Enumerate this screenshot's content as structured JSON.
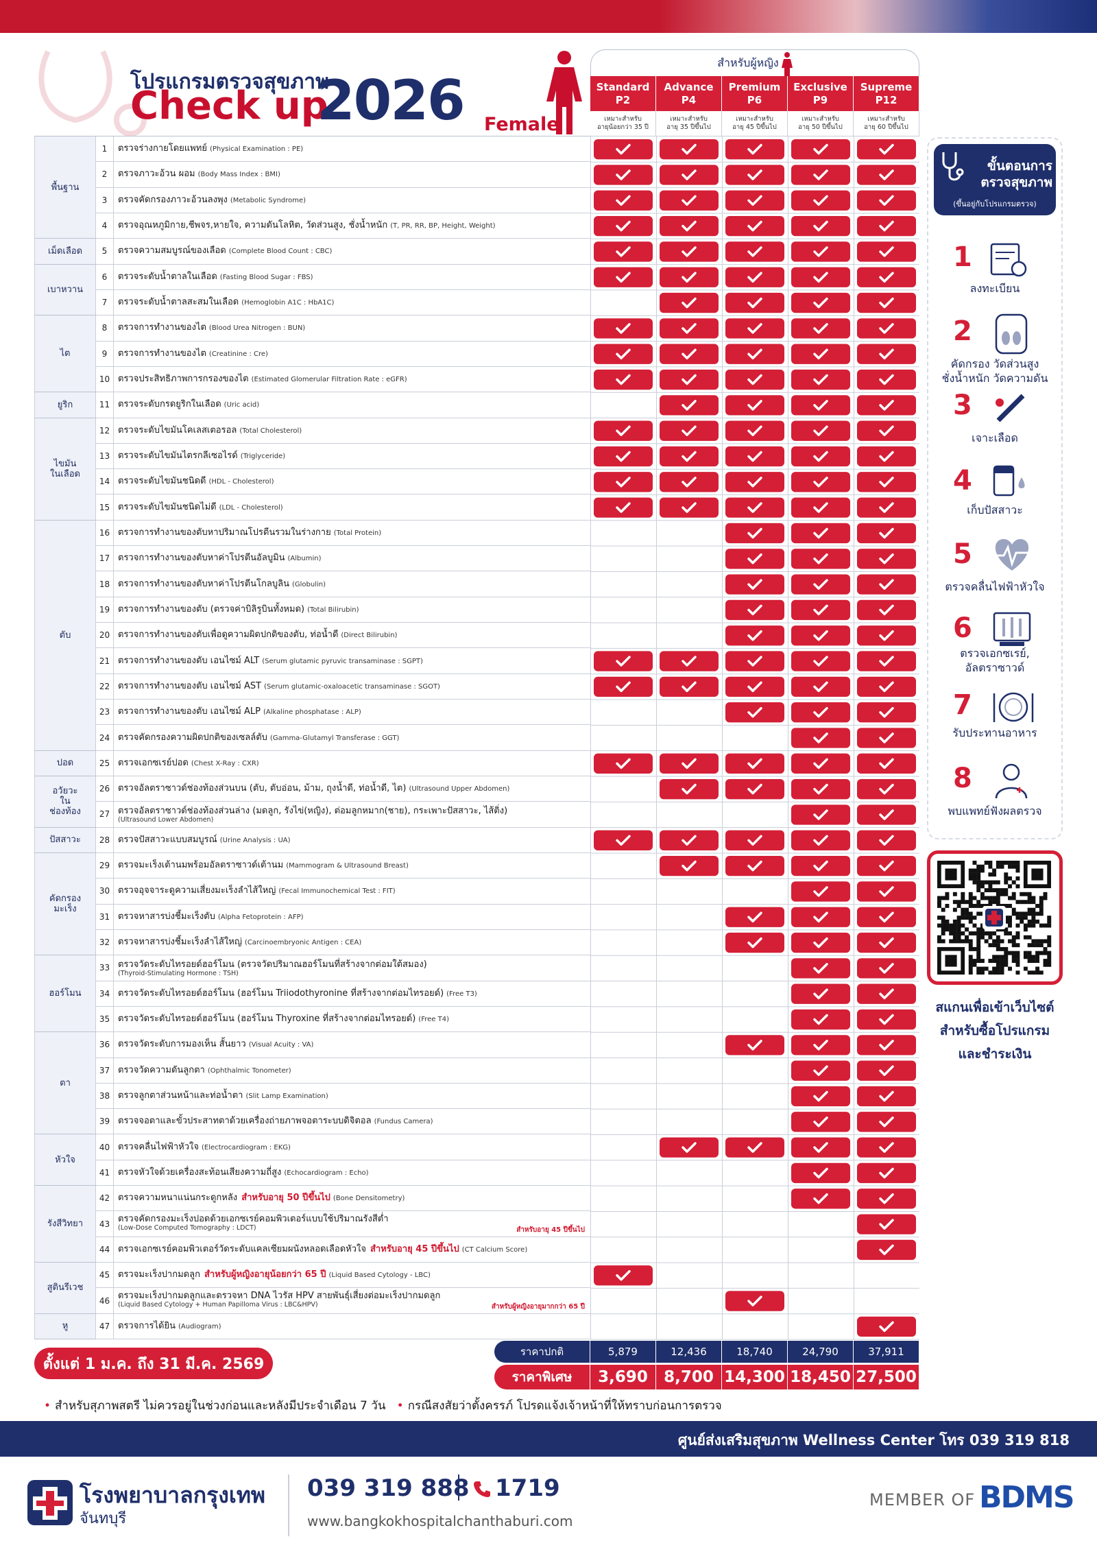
{
  "header": {
    "title_th": "โปรแกรมตรวจสุขภาพ",
    "title_en": "Check up",
    "year": "2026",
    "gender": "Female"
  },
  "table": {
    "for_women": "สำหรับผู้หญิง",
    "regular_label": "ราคาปกติ",
    "special_label": "ราคาพิเศษ",
    "packages": [
      {
        "name": "Standard",
        "code": "P2",
        "suitable": "เหมาะสำหรับ",
        "age": "อายุน้อยกว่า 35 ปี",
        "regular_price": "5,879",
        "special_price": "3,690"
      },
      {
        "name": "Advance",
        "code": "P4",
        "suitable": "เหมาะสำหรับ",
        "age": "อายุ 35 ปีขึ้นไป",
        "regular_price": "12,436",
        "special_price": "8,700"
      },
      {
        "name": "Premium",
        "code": "P6",
        "suitable": "เหมาะสำหรับ",
        "age": "อายุ 45 ปีขึ้นไป",
        "regular_price": "18,740",
        "special_price": "14,300"
      },
      {
        "name": "Exclusive",
        "code": "P9",
        "suitable": "เหมาะสำหรับ",
        "age": "อายุ 50 ปีขึ้นไป",
        "regular_price": "24,790",
        "special_price": "18,450"
      },
      {
        "name": "Supreme",
        "code": "P12",
        "suitable": "เหมาะสำหรับ",
        "age": "อายุ 60 ปีขึ้นไป",
        "regular_price": "37,911",
        "special_price": "27,500"
      }
    ],
    "groups": [
      {
        "name": [
          "พื้นฐาน"
        ],
        "rows": [
          {
            "no": "1",
            "th": "ตรวจร่างกายโดยแพทย์",
            "en": "(Physical Examination : PE)",
            "checks": [
              true,
              true,
              true,
              true,
              true
            ]
          },
          {
            "no": "2",
            "th": "ตรวจภาวะอ้วน ผอม",
            "en": "(Body Mass Index : BMI)",
            "checks": [
              true,
              true,
              true,
              true,
              true
            ]
          },
          {
            "no": "3",
            "th": "ตรวจคัดกรองภาวะอ้วนลงพุง",
            "en": "(Metabolic Syndrome)",
            "checks": [
              true,
              true,
              true,
              true,
              true
            ]
          },
          {
            "no": "4",
            "th": "ตรวจอุณหภูมิกาย,ชีพจร,หายใจ, ความดันโลหิต, วัดส่วนสูง, ชั่งน้ำหนัก",
            "en": "(T, PR, RR, BP, Height, Weight)",
            "checks": [
              true,
              true,
              true,
              true,
              true
            ]
          }
        ]
      },
      {
        "name": [
          "เม็ดเลือด"
        ],
        "rows": [
          {
            "no": "5",
            "th": "ตรวจความสมบูรณ์ของเลือด",
            "en": "(Complete Blood Count : CBC)",
            "checks": [
              true,
              true,
              true,
              true,
              true
            ]
          }
        ]
      },
      {
        "name": [
          "เบาหวาน"
        ],
        "rows": [
          {
            "no": "6",
            "th": "ตรวจระดับน้ำตาลในเลือด",
            "en": "(Fasting Blood Sugar : FBS)",
            "checks": [
              true,
              true,
              true,
              true,
              true
            ]
          },
          {
            "no": "7",
            "th": "ตรวจระดับน้ำตาลสะสมในเลือด",
            "en": "(Hemoglobin A1C : HbA1C)",
            "checks": [
              false,
              true,
              true,
              true,
              true
            ]
          }
        ]
      },
      {
        "name": [
          "ไต"
        ],
        "rows": [
          {
            "no": "8",
            "th": "ตรวจการทำงานของไต",
            "en": "(Blood Urea Nitrogen : BUN)",
            "checks": [
              true,
              true,
              true,
              true,
              true
            ]
          },
          {
            "no": "9",
            "th": "ตรวจการทำงานของไต",
            "en": "(Creatinine : Cre)",
            "checks": [
              true,
              true,
              true,
              true,
              true
            ]
          },
          {
            "no": "10",
            "th": "ตรวจประสิทธิภาพการกรองของไต",
            "en": "(Estimated Glomerular Filtration Rate : eGFR)",
            "checks": [
              true,
              true,
              true,
              true,
              true
            ]
          }
        ]
      },
      {
        "name": [
          "ยูริก"
        ],
        "rows": [
          {
            "no": "11",
            "th": "ตรวจระดับกรดยูริกในเลือด",
            "en": "(Uric acid)",
            "checks": [
              false,
              true,
              true,
              true,
              true
            ]
          }
        ]
      },
      {
        "name": [
          "ไขมัน",
          "ในเลือด"
        ],
        "rows": [
          {
            "no": "12",
            "th": "ตรวจระดับไขมันโคเลสเตอรอล",
            "en": "(Total Cholesterol)",
            "checks": [
              true,
              true,
              true,
              true,
              true
            ]
          },
          {
            "no": "13",
            "th": "ตรวจระดับไขมันไตรกลีเซอไรด์",
            "en": "(Triglyceride)",
            "checks": [
              true,
              true,
              true,
              true,
              true
            ]
          },
          {
            "no": "14",
            "th": "ตรวจระดับไขมันชนิดดี",
            "en": "(HDL - Cholesterol)",
            "checks": [
              true,
              true,
              true,
              true,
              true
            ]
          },
          {
            "no": "15",
            "th": "ตรวจระดับไขมันชนิดไม่ดี",
            "en": "(LDL - Cholesterol)",
            "checks": [
              true,
              true,
              true,
              true,
              true
            ]
          }
        ]
      },
      {
        "name": [
          "ตับ"
        ],
        "rows": [
          {
            "no": "16",
            "th": "ตรวจการทำงานของตับหาปริมาณโปรตีนรวมในร่างกาย",
            "en": "(Total Protein)",
            "checks": [
              false,
              false,
              true,
              true,
              true
            ]
          },
          {
            "no": "17",
            "th": "ตรวจการทำงานของตับหาค่าโปรตีนอัลบูมิน",
            "en": "(Albumin)",
            "checks": [
              false,
              false,
              true,
              true,
              true
            ]
          },
          {
            "no": "18",
            "th": "ตรวจการทำงานของตับหาค่าโปรตีนโกลบูลิน",
            "en": "(Globulin)",
            "checks": [
              false,
              false,
              true,
              true,
              true
            ]
          },
          {
            "no": "19",
            "th": "ตรวจการทำงานของตับ (ตรวจค่าบิลิรูบินทั้งหมด)",
            "en": "(Total Bilirubin)",
            "checks": [
              false,
              false,
              true,
              true,
              true
            ]
          },
          {
            "no": "20",
            "th": "ตรวจการทำงานของตับเพื่อดูความผิดปกติของตับ, ท่อน้ำดี",
            "en": "(Direct Bilirubin)",
            "checks": [
              false,
              false,
              true,
              true,
              true
            ]
          },
          {
            "no": "21",
            "th": "ตรวจการทำงานของตับ เอนไซม์ ALT",
            "en": "(Serum glutamic pyruvic transaminase : SGPT)",
            "checks": [
              true,
              true,
              true,
              true,
              true
            ]
          },
          {
            "no": "22",
            "th": "ตรวจการทำงานของตับ เอนไซม์ AST",
            "en": "(Serum glutamic-oxaloacetic transaminase : SGOT)",
            "checks": [
              true,
              true,
              true,
              true,
              true
            ]
          },
          {
            "no": "23",
            "th": "ตรวจการทำงานของตับ เอนไซม์ ALP",
            "en": "(Alkaline phosphatase : ALP)",
            "checks": [
              false,
              false,
              true,
              true,
              true
            ]
          },
          {
            "no": "24",
            "th": "ตรวจคัดกรองความผิดปกติของเซลล์ตับ",
            "en": "(Gamma-Glutamyl Transferase : GGT)",
            "checks": [
              false,
              false,
              false,
              true,
              true
            ]
          }
        ]
      },
      {
        "name": [
          "ปอด"
        ],
        "rows": [
          {
            "no": "25",
            "th": "ตรวจเอกซเรย์ปอด",
            "en": "(Chest X-Ray : CXR)",
            "checks": [
              true,
              true,
              true,
              true,
              true
            ]
          }
        ]
      },
      {
        "name": [
          "อวัยวะ",
          "ใน",
          "ช่องท้อง"
        ],
        "rows": [
          {
            "no": "26",
            "th": "ตรวจอัลตราซาวด์ช่องท้องส่วนบน (ตับ, ตับอ่อน, ม้าม, ถุงน้ำดี, ท่อน้ำดี, ไต)",
            "en": "(Ultrasound Upper Abdomen)",
            "checks": [
              false,
              true,
              true,
              true,
              true
            ]
          },
          {
            "no": "27",
            "th": "ตรวจอัลตราซาวด์ช่องท้องส่วนล่าง (มดลูก, รังไข่(หญิง), ต่อมลูกหมาก(ชาย), กระเพาะปัสสาวะ, ไส้ติ่ง)",
            "sub": "(Ultrasound Lower Abdomen)",
            "checks": [
              false,
              false,
              false,
              true,
              true
            ]
          }
        ]
      },
      {
        "name": [
          "ปัสสาวะ"
        ],
        "rows": [
          {
            "no": "28",
            "th": "ตรวจปัสสาวะแบบสมบูรณ์",
            "en": "(Urine Analysis : UA)",
            "checks": [
              true,
              true,
              true,
              true,
              true
            ]
          }
        ]
      },
      {
        "name": [
          "คัดกรอง",
          "มะเร็ง"
        ],
        "rows": [
          {
            "no": "29",
            "th": "ตรวจมะเร็งเต้านมพร้อมอัลตราซาวด์เต้านม",
            "en": "(Mammogram & Ultrasound Breast)",
            "checks": [
              false,
              true,
              true,
              true,
              true
            ]
          },
          {
            "no": "30",
            "th": "ตรวจอุจจาระดูความเสี่ยงมะเร็งลำไส้ใหญ่",
            "en": "(Fecal Immunochemical Test : FIT)",
            "checks": [
              false,
              false,
              false,
              true,
              true
            ]
          },
          {
            "no": "31",
            "th": "ตรวจหาสารบ่งชี้มะเร็งตับ",
            "en": "(Alpha Fetoprotein : AFP)",
            "checks": [
              false,
              false,
              true,
              true,
              true
            ]
          },
          {
            "no": "32",
            "th": "ตรวจหาสารบ่งชี้มะเร็งลำไส้ใหญ่",
            "en": "(Carcinoembryonic Antigen : CEA)",
            "checks": [
              false,
              false,
              true,
              true,
              true
            ]
          }
        ]
      },
      {
        "name": [
          "ฮอร์โมน"
        ],
        "rows": [
          {
            "no": "33",
            "th": "ตรวจวัดระดับไทรอยด์ฮอร์โมน (ตรวจวัดปริมาณฮอร์โมนที่สร้างจากต่อมใต้สมอง)",
            "sub": "(Thyroid-Stimulating Hormone : TSH)",
            "checks": [
              false,
              false,
              false,
              true,
              true
            ]
          },
          {
            "no": "34",
            "th": "ตรวจวัดระดับไทรอยด์ฮอร์โมน (ฮอร์โมน Triiodothyronine ที่สร้างจากต่อมไทรอยด์)",
            "en": "(Free T3)",
            "checks": [
              false,
              false,
              false,
              true,
              true
            ]
          },
          {
            "no": "35",
            "th": "ตรวจวัดระดับไทรอยด์ฮอร์โมน (ฮอร์โมน Thyroxine ที่สร้างจากต่อมไทรอยด์)",
            "en": "(Free T4)",
            "checks": [
              false,
              false,
              false,
              true,
              true
            ]
          }
        ]
      },
      {
        "name": [
          "ตา"
        ],
        "rows": [
          {
            "no": "36",
            "th": "ตรวจวัดระดับการมองเห็น สั้นยาว",
            "en": "(Visual Acuity : VA)",
            "checks": [
              false,
              false,
              true,
              true,
              true
            ]
          },
          {
            "no": "37",
            "th": "ตรวจวัดความดันลูกตา",
            "en": "(Ophthalmic Tonometer)",
            "checks": [
              false,
              false,
              false,
              true,
              true
            ]
          },
          {
            "no": "38",
            "th": "ตรวจลูกตาส่วนหน้าและท่อน้ำตา",
            "en": "(Slit Lamp Examination)",
            "checks": [
              false,
              false,
              false,
              true,
              true
            ]
          },
          {
            "no": "39",
            "th": "ตรวจจอตาและขั้วประสาทตาด้วยเครื่องถ่ายภาพจอตาระบบดิจิตอล",
            "en": "(Fundus Camera)",
            "checks": [
              false,
              false,
              false,
              true,
              true
            ]
          }
        ]
      },
      {
        "name": [
          "หัวใจ"
        ],
        "rows": [
          {
            "no": "40",
            "th": "ตรวจคลื่นไฟฟ้าหัวใจ",
            "en": "(Electrocardiogram : EKG)",
            "checks": [
              false,
              true,
              true,
              true,
              true
            ]
          },
          {
            "no": "41",
            "th": "ตรวจหัวใจด้วยเครื่องสะท้อนเสียงความถี่สูง",
            "en": "(Echocardiogram : Echo)",
            "checks": [
              false,
              false,
              false,
              true,
              true
            ]
          }
        ]
      },
      {
        "name": [
          "รังสีวิทยา"
        ],
        "rows": [
          {
            "no": "42",
            "th": "ตรวจความหนาแน่นกระดูกหลัง",
            "note": "สำหรับอายุ 50 ปีขึ้นไป",
            "en": "(Bone Densitometry)",
            "checks": [
              false,
              false,
              false,
              true,
              true
            ]
          },
          {
            "no": "43",
            "th": "ตรวจคัดกรองมะเร็งปอดด้วยเอกซเรย์คอมพิวเตอร์แบบใช้ปริมาณรังสีต่ำ",
            "note": "สำหรับอายุ 45 ปีขึ้นไป",
            "sub": "(Low-Dose Computed Tomography : LDCT)",
            "checks": [
              false,
              false,
              false,
              false,
              true
            ]
          },
          {
            "no": "44",
            "th": "ตรวจเอกซเรย์คอมพิวเตอร์วัดระดับแคลเซียมผนังหลอดเลือดหัวใจ",
            "note": "สำหรับอายุ 45 ปีขึ้นไป",
            "en": "(CT Calcium Score)",
            "checks": [
              false,
              false,
              false,
              false,
              true
            ]
          }
        ]
      },
      {
        "name": [
          "สูตินรีเวช"
        ],
        "rows": [
          {
            "no": "45",
            "th": "ตรวจมะเร็งปากมดลูก",
            "note": "สำหรับผู้หญิงอายุน้อยกว่า 65 ปี",
            "en": "(Liquid Based Cytology - LBC)",
            "checks": [
              true,
              false,
              false,
              false,
              false
            ]
          },
          {
            "no": "46",
            "th": "ตรวจมะเร็งปากมดลูกและตรวจหา DNA ไวรัส HPV สายพันธุ์เสี่ยงต่อมะเร็งปากมดลูก",
            "note": "สำหรับผู้หญิงอายุมากกว่า 65 ปี",
            "sub": "(Liquid Based Cytology + Human Papilloma Virus : LBC&HPV)",
            "checks": [
              false,
              false,
              true,
              false,
              false
            ]
          }
        ]
      },
      {
        "name": [
          "หู"
        ],
        "rows": [
          {
            "no": "47",
            "th": "ตรวจการได้ยิน",
            "en": "(Audiogram)",
            "checks": [
              false,
              false,
              false,
              false,
              true
            ]
          }
        ]
      }
    ]
  },
  "promo": "ตั้งแต่ 1 ม.ค. ถึง 31 มี.ค. 2569",
  "notes": [
    "สำหรับสุภาพสตรี ไม่ควรอยู่ในช่วงก่อนและหลังมีประจำเดือน 7 วัน",
    "กรณีสงสัยว่าตั้งครรภ์ โปรดแจ้งเจ้าหน้าที่ให้ทราบก่อนการตรวจ"
  ],
  "steps": {
    "title": [
      "ขั้นตอนการ",
      "ตรวจสุขภาพ"
    ],
    "subtitle": "(ขึ้นอยู่กับโปรแกรมตรวจ)",
    "items": [
      {
        "no": "1",
        "label": [
          "ลงทะเบียน"
        ]
      },
      {
        "no": "2",
        "label": [
          "คัดกรอง วัดส่วนสูง",
          "ชั่งน้ำหนัก วัดความดัน"
        ]
      },
      {
        "no": "3",
        "label": [
          "เจาะเลือด"
        ]
      },
      {
        "no": "4",
        "label": [
          "เก็บปัสสาวะ"
        ]
      },
      {
        "no": "5",
        "label": [
          "ตรวจคลื่นไฟฟ้าหัวใจ"
        ]
      },
      {
        "no": "6",
        "label": [
          "ตรวจเอกซเรย์,",
          "อัลตราซาวด์"
        ]
      },
      {
        "no": "7",
        "label": [
          "รับประทานอาหาร"
        ]
      },
      {
        "no": "8",
        "label": [
          "พบแพทย์ฟังผลตรวจ"
        ]
      }
    ]
  },
  "qr_caption": [
    "สแกนเพื่อเข้าเว็บไซต์",
    "สำหรับซื้อโปรแกรม",
    "และชำระเงิน"
  ],
  "contact_bar": "ศูนย์ส่งเสริมสุขภาพ Wellness Center โทร 039 319 818",
  "footer": {
    "hospital": "โรงพยาบาลกรุงเทพ",
    "branch": "จันทบุรี",
    "phone": "039 319 888",
    "hotline": "1719",
    "website": "www.bangkokhospitalchanthaburi.com",
    "member_of": "MEMBER OF",
    "group": "BDMS"
  }
}
